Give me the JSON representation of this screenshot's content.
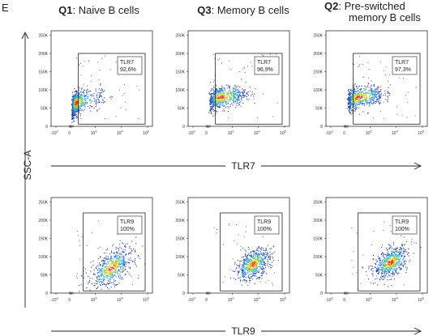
{
  "figure": {
    "panel_letter": "E",
    "columns": [
      {
        "id": "Q1",
        "label_lines": [
          "Naive B cells"
        ]
      },
      {
        "id": "Q3",
        "label_lines": [
          "Memory B cells"
        ]
      },
      {
        "id": "Q2",
        "label_lines": [
          "Pre-switched",
          "memory B cells"
        ]
      }
    ],
    "y_axis_label": "SSC-A",
    "rows": [
      {
        "x_axis_label": "TLR7"
      },
      {
        "x_axis_label": "TLR9"
      }
    ],
    "x_ticks": [
      {
        "base": "-10",
        "exp": "3",
        "value": -1000
      },
      {
        "base": "0",
        "exp": "",
        "value": 0
      },
      {
        "base": "10",
        "exp": "3",
        "value": 1000
      },
      {
        "base": "10",
        "exp": "4",
        "value": 10000
      },
      {
        "base": "10",
        "exp": "5",
        "value": 100000
      }
    ],
    "y_ticks": [
      "0",
      "50K",
      "100K",
      "150K",
      "200K",
      "250K"
    ]
  },
  "chart_data": [
    {
      "type": "scatter",
      "row": 1,
      "column": "Q1",
      "x_marker": "TLR7",
      "y_marker": "SSC-A",
      "gate": {
        "name": "TLR7",
        "percent": "92,6%",
        "x_range": [
          300,
          100000
        ],
        "y_range": [
          0,
          200000
        ]
      },
      "population": {
        "center_x": 200,
        "center_y": 65000,
        "spread_x_decades": 0.45,
        "spread_y": 22000,
        "tilt": 0.55
      },
      "ylim": [
        0,
        262144
      ]
    },
    {
      "type": "scatter",
      "row": 1,
      "column": "Q3",
      "x_marker": "TLR7",
      "y_marker": "SSC-A",
      "gate": {
        "name": "TLR7",
        "percent": "96,9%",
        "x_range": [
          300,
          100000
        ],
        "y_range": [
          0,
          200000
        ]
      },
      "population": {
        "center_x": 500,
        "center_y": 80000,
        "spread_x_decades": 0.4,
        "spread_y": 20000,
        "tilt": 0.45
      },
      "ylim": [
        0,
        262144
      ]
    },
    {
      "type": "scatter",
      "row": 1,
      "column": "Q2",
      "x_marker": "TLR7",
      "y_marker": "SSC-A",
      "gate": {
        "name": "TLR7",
        "percent": "97,3%",
        "x_range": [
          300,
          100000
        ],
        "y_range": [
          0,
          200000
        ]
      },
      "population": {
        "center_x": 500,
        "center_y": 80000,
        "spread_x_decades": 0.4,
        "spread_y": 20000,
        "tilt": 0.45
      },
      "ylim": [
        0,
        262144
      ]
    },
    {
      "type": "scatter",
      "row": 2,
      "column": "Q1",
      "x_marker": "TLR9",
      "y_marker": "SSC-A",
      "gate": {
        "name": "TLR9",
        "percent": "100%",
        "x_range": [
          500,
          100000
        ],
        "y_range": [
          0,
          220000
        ]
      },
      "population": {
        "center_x": 4000,
        "center_y": 70000,
        "spread_x_decades": 0.4,
        "spread_y": 30000,
        "tilt": 0.8
      },
      "ylim": [
        0,
        262144
      ]
    },
    {
      "type": "scatter",
      "row": 2,
      "column": "Q3",
      "x_marker": "TLR9",
      "y_marker": "SSC-A",
      "gate": {
        "name": "TLR9",
        "percent": "100%",
        "x_range": [
          500,
          100000
        ],
        "y_range": [
          0,
          220000
        ]
      },
      "population": {
        "center_x": 6000,
        "center_y": 80000,
        "spread_x_decades": 0.32,
        "spread_y": 25000,
        "tilt": 0.6
      },
      "ylim": [
        0,
        262144
      ]
    },
    {
      "type": "scatter",
      "row": 2,
      "column": "Q2",
      "x_marker": "TLR9",
      "y_marker": "SSC-A",
      "gate": {
        "name": "TLR9",
        "percent": "100%",
        "x_range": [
          500,
          100000
        ],
        "y_range": [
          0,
          220000
        ]
      },
      "population": {
        "center_x": 6000,
        "center_y": 85000,
        "spread_x_decades": 0.32,
        "spread_y": 25000,
        "tilt": 0.6
      },
      "ylim": [
        0,
        262144
      ]
    }
  ]
}
